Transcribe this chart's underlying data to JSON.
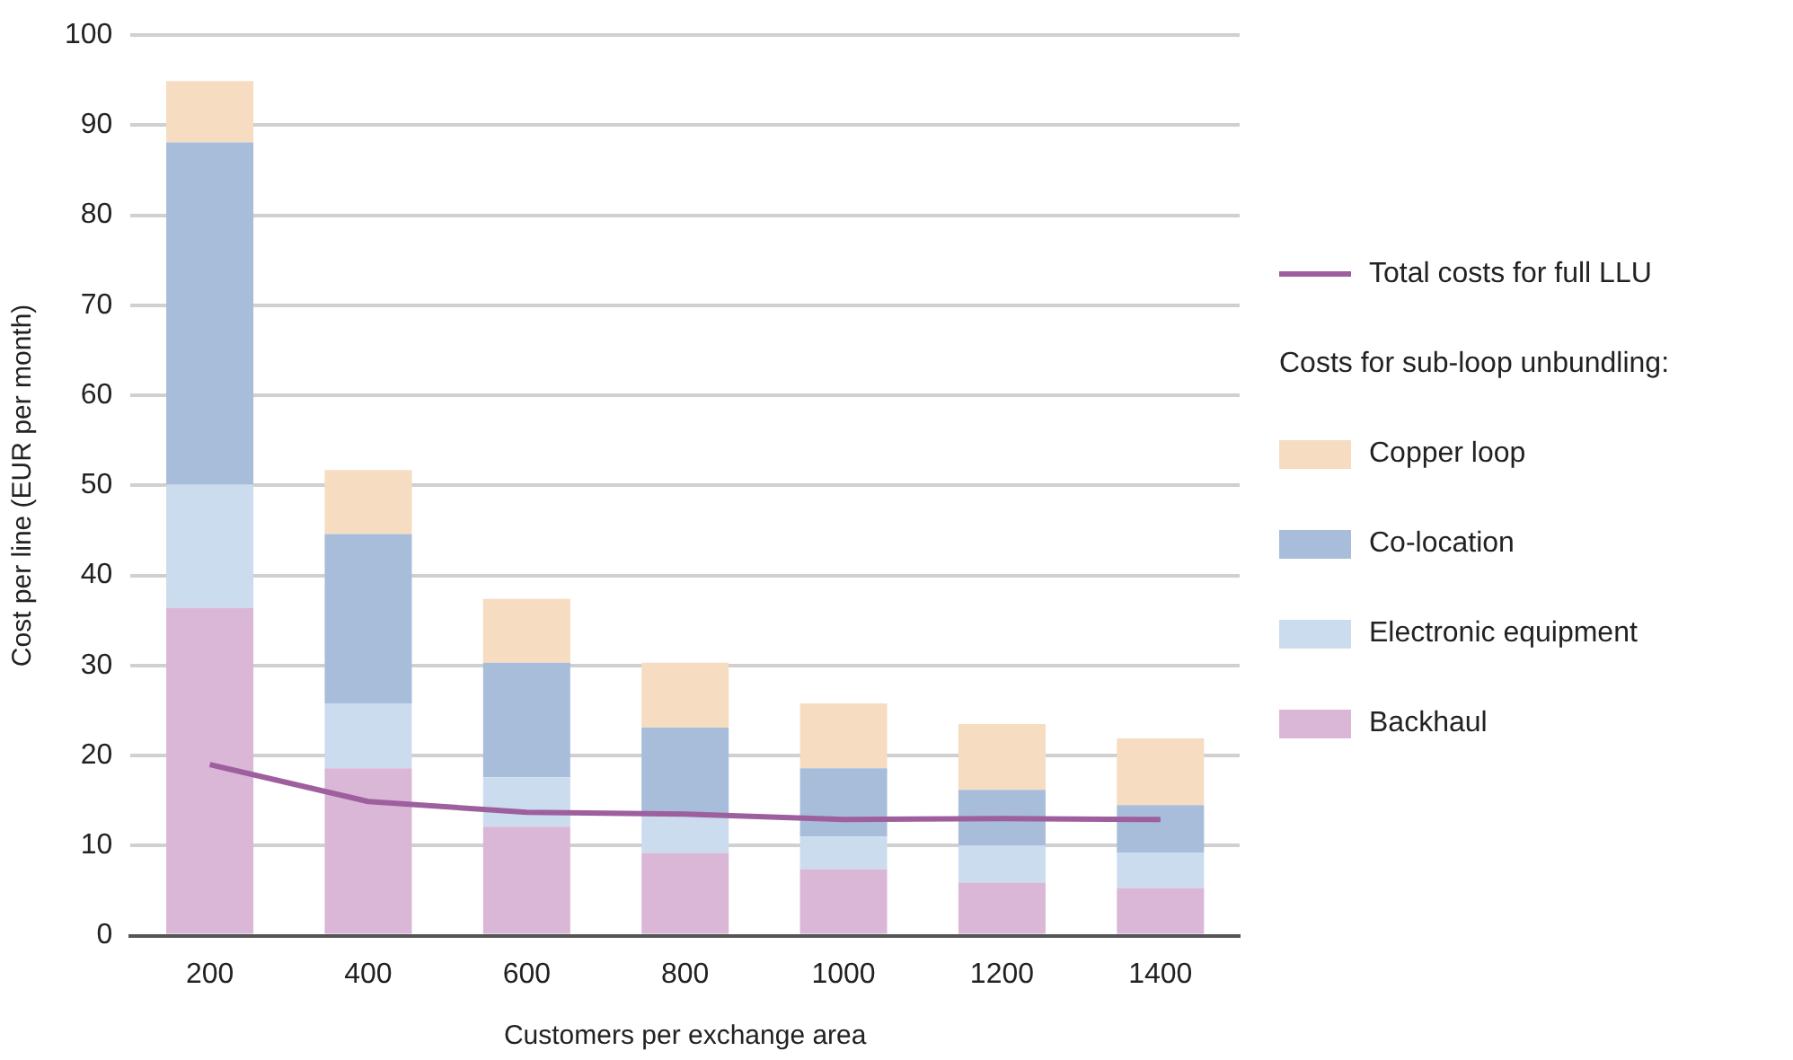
{
  "chart_data": {
    "type": "bar",
    "stacked": true,
    "categories": [
      "200",
      "400",
      "600",
      "800",
      "1000",
      "1200",
      "1400"
    ],
    "xlabel": "Customers per exchange area",
    "ylabel": "Cost per line (EUR per month)",
    "legend_title": "Costs for sub-loop unbundling:",
    "series": [
      {
        "name": "Backhaul",
        "color": "#dab7d6",
        "values": [
          36.4,
          18.6,
          12.1,
          9.2,
          7.4,
          5.9,
          5.3
        ]
      },
      {
        "name": "Electronic equipment",
        "color": "#cbdcee",
        "values": [
          13.7,
          7.2,
          5.5,
          4.1,
          3.6,
          4.1,
          3.9
        ]
      },
      {
        "name": "Co-location",
        "color": "#a7bdd9",
        "values": [
          38.0,
          18.8,
          12.7,
          9.8,
          7.6,
          6.2,
          5.3
        ]
      },
      {
        "name": "Copper loop",
        "color": "#f6dcc0",
        "values": [
          6.8,
          7.1,
          7.1,
          7.2,
          7.2,
          7.3,
          7.4
        ]
      },
      {
        "name": "Total costs for full LLU",
        "type": "line",
        "color": "#9e5f9e",
        "values": [
          19.0,
          14.9,
          13.7,
          13.5,
          12.9,
          13.0,
          12.9
        ]
      }
    ],
    "ylim": [
      0,
      100
    ],
    "yticks": [
      0,
      10,
      20,
      30,
      40,
      50,
      60,
      70,
      80,
      90,
      100
    ],
    "grid": "y",
    "legend": "right",
    "marker": "none",
    "line_style": "solid"
  }
}
